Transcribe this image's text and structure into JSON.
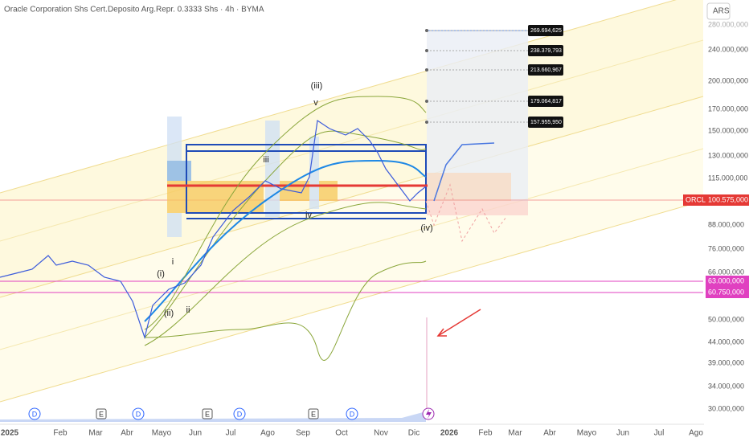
{
  "header": {
    "title": "Oracle Corporation Shs Cert.Deposito Arg.Repr. 0.3333 Shs · 4h · BYMA",
    "currency": "ARS"
  },
  "price_axis": {
    "labels": [
      "280.000,000",
      "240.000,000",
      "200.000,000",
      "170.000,000",
      "150.000,000",
      "130.000,000",
      "115.000,000",
      "88.000,000",
      "76.000,000",
      "66.000,000",
      "50.000,000",
      "44.000,000",
      "39.000,000",
      "34.000,000",
      "30.000,000"
    ]
  },
  "price_tags": {
    "symbol": "ORCL",
    "last": "100.575,000",
    "levels": [
      "63.000,000",
      "60.750,000"
    ]
  },
  "targets": [
    "269.694,625",
    "238.379,793",
    "213.660,967",
    "179.064,817",
    "157.955,950"
  ],
  "time_axis": {
    "labels": [
      "2025",
      "Feb",
      "Mar",
      "Abr",
      "Mayo",
      "Jun",
      "Jul",
      "Ago",
      "Sep",
      "Oct",
      "Nov",
      "Dic",
      "2026",
      "Feb",
      "Mar",
      "Abr",
      "Mayo",
      "Jun",
      "Jul",
      "Ago"
    ]
  },
  "wave_labels": [
    "(i)",
    "i",
    "ii",
    "(ii)",
    "iii",
    "iv",
    "(iii)",
    "v",
    "(iv)"
  ],
  "events": [
    "D",
    "E",
    "D",
    "E",
    "D",
    "E",
    "D"
  ]
}
